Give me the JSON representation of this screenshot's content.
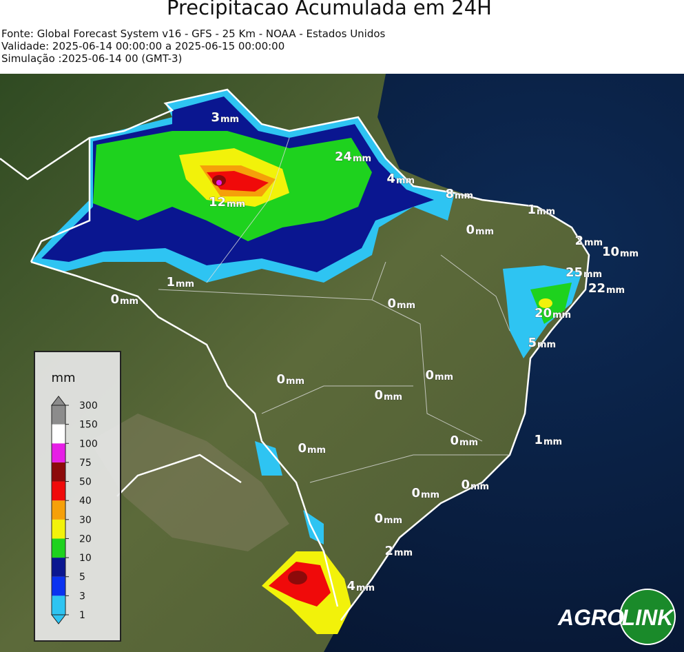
{
  "header": {
    "title": "Precipitacao Acumulada em 24H",
    "source": "Fonte: Global Forecast System v16 - GFS - 25 Km - NOAA - Estados Unidos",
    "validity": "Validade: 2025-06-14 00:00:00 a 2025-06-15 00:00:00",
    "simulation": "Simulação :2025-06-14 00 (GMT-3)"
  },
  "map": {
    "label_unit": "mm",
    "labels": [
      3,
      24,
      12,
      4,
      8,
      1,
      0,
      2,
      10,
      25,
      22,
      20,
      5,
      1,
      0,
      0,
      0,
      0,
      0,
      0,
      0,
      1,
      0,
      0,
      0,
      2,
      4
    ],
    "legend": {
      "title": "mm",
      "ticks": [
        1,
        3,
        5,
        10,
        20,
        30,
        40,
        50,
        75,
        100,
        150,
        300
      ],
      "colors": [
        "#2ec4f2",
        "#0a32f0",
        "#0a1690",
        "#1ed21e",
        "#f2f20a",
        "#f5a00a",
        "#f00a0a",
        "#8c0a0a",
        "#e61ee6",
        "#ffffff",
        "#8c8c8c"
      ]
    }
  },
  "logo": {
    "left": "AGRO",
    "right": "LINK"
  }
}
